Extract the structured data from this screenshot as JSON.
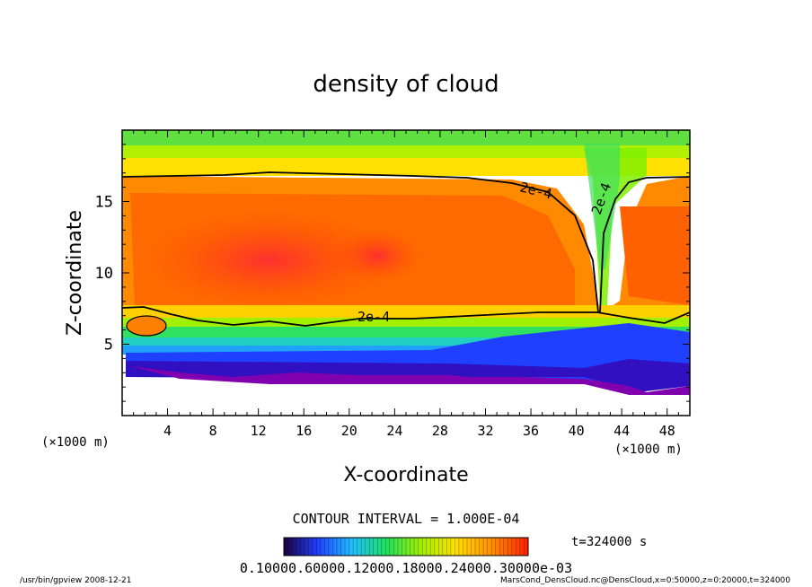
{
  "chart_data": {
    "type": "heatmap",
    "title": "density of cloud",
    "xlabel": "X-coordinate",
    "ylabel": "Z-coordinate",
    "x_unit_left": "(×1000 m)",
    "x_unit_right": "(×1000 m)",
    "xlim": [
      0,
      50
    ],
    "ylim": [
      0,
      20
    ],
    "x_ticks": [
      4,
      8,
      12,
      16,
      20,
      24,
      28,
      32,
      36,
      40,
      44,
      48
    ],
    "y_ticks": [
      5,
      10,
      15
    ],
    "contour_interval_text": "CONTOUR INTERVAL = 1.000E-04",
    "contour_label": "2e-4",
    "time_text": "t=324000 s",
    "colorbar_text": "0.10000.60000.12000.18000.24000.30000e-03",
    "colorbar_colors": [
      "#1a0040",
      "#2040ff",
      "#20c0ff",
      "#20e060",
      "#a0f000",
      "#ffe000",
      "#ff9000",
      "#ff2000"
    ],
    "footer_left": "/usr/bin/gpview  2008-12-21",
    "footer_right": "MarsCond_DensCloud.nc@DensCloud,x=0:50000,z=0:20000,t=324000",
    "cloud_base_km": 3.0,
    "cloud_top_km": 17.0,
    "core_max_value": "0.30000e-03"
  }
}
